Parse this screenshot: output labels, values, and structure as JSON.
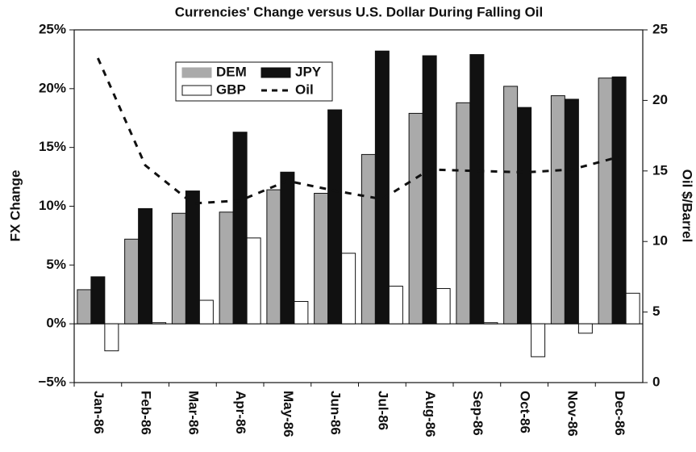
{
  "chart_data": {
    "type": "bar",
    "title": "Currencies' Change versus U.S. Dollar During Falling Oil",
    "y_label": "FX Change",
    "y2_label": "Oil $/Barrel",
    "categories": [
      "Jan-86",
      "Feb-86",
      "Mar-86",
      "Apr-86",
      "May-86",
      "Jun-86",
      "Jul-86",
      "Aug-86",
      "Sep-86",
      "Oct-86",
      "Nov-86",
      "Dec-86"
    ],
    "series": [
      {
        "name": "DEM",
        "color": "#aaaaaa",
        "values": [
          2.9,
          7.2,
          9.4,
          9.5,
          11.4,
          11.1,
          14.4,
          17.9,
          18.8,
          20.2,
          19.4,
          20.9
        ]
      },
      {
        "name": "JPY",
        "color": "#111111",
        "values": [
          4.0,
          9.8,
          11.3,
          16.3,
          12.9,
          18.2,
          23.2,
          22.8,
          22.9,
          18.4,
          19.1,
          21.0
        ]
      },
      {
        "name": "GBP",
        "color": "#ffffff",
        "values": [
          -2.3,
          0.1,
          2.0,
          7.3,
          1.9,
          6.0,
          3.2,
          3.0,
          0.1,
          -2.8,
          -0.8,
          2.6
        ]
      },
      {
        "name": "Oil",
        "color": "#111111",
        "type": "line",
        "axis": "y2",
        "values": [
          23.0,
          15.4,
          12.7,
          12.9,
          14.3,
          13.6,
          13.0,
          15.1,
          15.0,
          14.9,
          15.1,
          16.0
        ]
      }
    ],
    "ylim": [
      -5,
      25
    ],
    "yticks": [
      {
        "value": -5,
        "label": "−5%"
      },
      {
        "value": 0,
        "label": "0%"
      },
      {
        "value": 5,
        "label": "5%"
      },
      {
        "value": 10,
        "label": "10%"
      },
      {
        "value": 15,
        "label": "15%"
      },
      {
        "value": 20,
        "label": "20%"
      },
      {
        "value": 25,
        "label": "25%"
      }
    ],
    "y2lim": [
      0,
      25
    ],
    "y2ticks": [
      0,
      5,
      10,
      15,
      20,
      25
    ],
    "legend": "top-left",
    "grid": false
  }
}
